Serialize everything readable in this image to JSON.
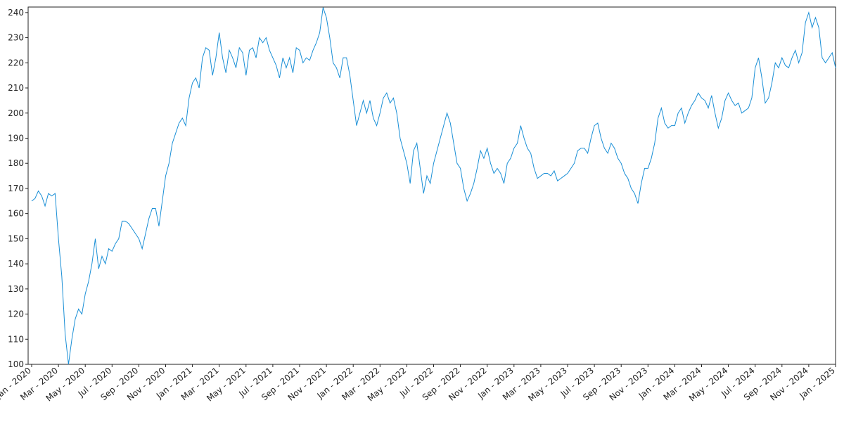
{
  "chart_data": {
    "type": "line",
    "categories": [
      "Jan - 2020",
      null,
      null,
      null,
      null,
      null,
      null,
      null,
      "Mar - 2020",
      null,
      null,
      null,
      null,
      null,
      null,
      null,
      "May - 2020",
      null,
      null,
      null,
      null,
      null,
      null,
      null,
      "Jul - 2020",
      null,
      null,
      null,
      null,
      null,
      null,
      null,
      "Sep - 2020",
      null,
      null,
      null,
      null,
      null,
      null,
      null,
      "Nov - 2020",
      null,
      null,
      null,
      null,
      null,
      null,
      null,
      "Jan - 2021",
      null,
      null,
      null,
      null,
      null,
      null,
      null,
      "Mar - 2021",
      null,
      null,
      null,
      null,
      null,
      null,
      null,
      "May - 2021",
      null,
      null,
      null,
      null,
      null,
      null,
      null,
      "Jul - 2021",
      null,
      null,
      null,
      null,
      null,
      null,
      null,
      "Sep - 2021",
      null,
      null,
      null,
      null,
      null,
      null,
      null,
      "Nov - 2021",
      null,
      null,
      null,
      null,
      null,
      null,
      null,
      "Jan - 2022",
      null,
      null,
      null,
      null,
      null,
      null,
      null,
      "Mar - 2022",
      null,
      null,
      null,
      null,
      null,
      null,
      null,
      "May - 2022",
      null,
      null,
      null,
      null,
      null,
      null,
      null,
      "Jul - 2022",
      null,
      null,
      null,
      null,
      null,
      null,
      null,
      "Sep - 2022",
      null,
      null,
      null,
      null,
      null,
      null,
      null,
      "Nov - 2022",
      null,
      null,
      null,
      null,
      null,
      null,
      null,
      "Jan - 2023",
      null,
      null,
      null,
      null,
      null,
      null,
      null,
      "Mar - 2023",
      null,
      null,
      null,
      null,
      null,
      null,
      null,
      "May - 2023",
      null,
      null,
      null,
      null,
      null,
      null,
      null,
      "Jul - 2023",
      null,
      null,
      null,
      null,
      null,
      null,
      null,
      "Sep - 2023",
      null,
      null,
      null,
      null,
      null,
      null,
      null,
      "Nov - 2023",
      null,
      null,
      null,
      null,
      null,
      null,
      null,
      "Jan - 2024",
      null,
      null,
      null,
      null,
      null,
      null,
      null,
      "Mar - 2024",
      null,
      null,
      null,
      null,
      null,
      null,
      null,
      "May - 2024",
      null,
      null,
      null,
      null,
      null,
      null,
      null,
      "Jul - 2024",
      null,
      null,
      null,
      null,
      null,
      null,
      null,
      "Sep - 2024",
      null,
      null,
      null,
      null,
      null,
      null,
      null,
      "Nov - 2024",
      null,
      null,
      null,
      null,
      null,
      null,
      null,
      "Jan - 2025"
    ],
    "series": [
      {
        "color": "#1a8fd6",
        "values": [
          165,
          166,
          169,
          167,
          163,
          168,
          167,
          168,
          150,
          135,
          112,
          100,
          110,
          118,
          122,
          120,
          128,
          133,
          140,
          150,
          138,
          143,
          140,
          146,
          145,
          148,
          150,
          157,
          157,
          156,
          154,
          152,
          150,
          146,
          152,
          158,
          162,
          162,
          155,
          165,
          175,
          180,
          188,
          192,
          196,
          198,
          195,
          206,
          212,
          214,
          210,
          222,
          226,
          225,
          215,
          222,
          232,
          222,
          216,
          225,
          222,
          218,
          226,
          224,
          215,
          225,
          226,
          222,
          230,
          228,
          230,
          225,
          222,
          219,
          214,
          222,
          218,
          222,
          216,
          226,
          225,
          220,
          222,
          221,
          225,
          228,
          232,
          242,
          238,
          230,
          220,
          218,
          214,
          222,
          222,
          215,
          205,
          195,
          200,
          205,
          200,
          205,
          198,
          195,
          200,
          206,
          208,
          204,
          206,
          200,
          190,
          185,
          180,
          172,
          185,
          188,
          178,
          168,
          175,
          172,
          180,
          185,
          190,
          195,
          200,
          196,
          188,
          180,
          178,
          170,
          165,
          168,
          172,
          178,
          185,
          182,
          186,
          180,
          176,
          178,
          176,
          172,
          180,
          182,
          186,
          188,
          195,
          190,
          186,
          184,
          178,
          174,
          175,
          176,
          176,
          175,
          177,
          173,
          174,
          175,
          176,
          178,
          180,
          185,
          186,
          186,
          184,
          190,
          195,
          196,
          190,
          186,
          184,
          188,
          186,
          182,
          180,
          176,
          174,
          170,
          168,
          164,
          172,
          178,
          178,
          182,
          188,
          198,
          202,
          196,
          194,
          195,
          195,
          200,
          202,
          196,
          200,
          203,
          205,
          208,
          206,
          205,
          202,
          207,
          200,
          194,
          198,
          205,
          208,
          205,
          203,
          204,
          200,
          201,
          202,
          206,
          218,
          222,
          214,
          204,
          206,
          212,
          220,
          218,
          222,
          219,
          218,
          222,
          225,
          220,
          224,
          236,
          240,
          234,
          238,
          234,
          222,
          220,
          222,
          224,
          218
        ]
      }
    ],
    "ylim": [
      100,
      242.2
    ],
    "yticks": [
      100,
      110,
      120,
      130,
      140,
      150,
      160,
      170,
      180,
      190,
      200,
      210,
      220,
      230,
      240
    ]
  }
}
